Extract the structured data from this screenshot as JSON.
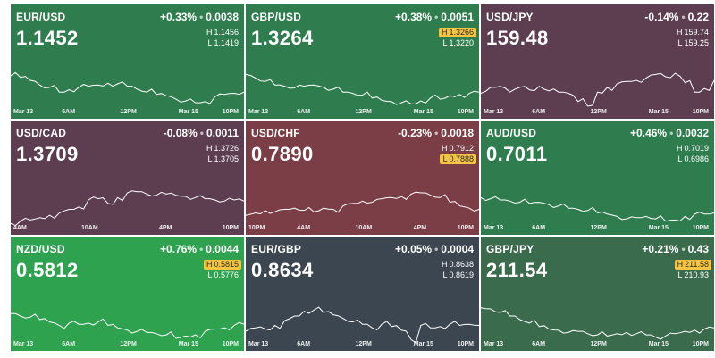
{
  "tiles": [
    {
      "pair": "EUR/USD",
      "change_pct": "+0.33%",
      "change_abs": "0.0038",
      "price": "1.1452",
      "high_label": "H",
      "high": "1.1456",
      "low_label": "L",
      "low": "1.1419",
      "flag": "",
      "bg": "#2f7d4e",
      "ticks": [
        "Mar 13",
        "6AM",
        "12PM",
        "Mar 15",
        "10PM"
      ],
      "spark": [
        0.42,
        0.45,
        0.5,
        0.58,
        0.62,
        0.7,
        0.66,
        0.62,
        0.6,
        0.58,
        0.55,
        0.56,
        0.6,
        0.65,
        0.7,
        0.74,
        0.76,
        0.82,
        0.85,
        0.88,
        0.86,
        0.78,
        0.74,
        0.72,
        0.7
      ]
    },
    {
      "pair": "GBP/USD",
      "change_pct": "+0.38%",
      "change_abs": "0.0051",
      "price": "1.3264",
      "high_label": "H",
      "high": "1.3266",
      "low_label": "L",
      "low": "1.3220",
      "flag": "high",
      "bg": "#2f7d4e",
      "ticks": [
        "Mar 13",
        "6AM",
        "12PM",
        "Mar 15",
        "10PM"
      ],
      "spark": [
        0.4,
        0.46,
        0.52,
        0.58,
        0.6,
        0.63,
        0.6,
        0.58,
        0.62,
        0.65,
        0.7,
        0.72,
        0.75,
        0.8,
        0.84,
        0.86,
        0.88,
        0.9,
        0.85,
        0.8,
        0.82,
        0.76,
        0.74,
        0.72,
        0.7
      ]
    },
    {
      "pair": "USD/JPY",
      "change_pct": "-0.14%",
      "change_abs": "0.22",
      "price": "159.48",
      "high_label": "H",
      "high": "159.74",
      "low_label": "L",
      "low": "159.25",
      "flag": "",
      "bg": "#5c3e50",
      "ticks": [
        "Mar 13",
        "6AM",
        "12PM",
        "Mar 15",
        "10PM"
      ],
      "spark": [
        0.72,
        0.62,
        0.6,
        0.7,
        0.62,
        0.66,
        0.6,
        0.68,
        0.7,
        0.72,
        0.86,
        0.94,
        0.7,
        0.62,
        0.56,
        0.52,
        0.5,
        0.46,
        0.4,
        0.44,
        0.38,
        0.54,
        0.7,
        0.64,
        0.5
      ]
    },
    {
      "pair": "USD/CAD",
      "change_pct": "-0.08%",
      "change_abs": "0.0011",
      "price": "1.3709",
      "high_label": "H",
      "high": "1.3726",
      "low_label": "L",
      "low": "1.3705",
      "flag": "",
      "bg": "#5c3e50",
      "ticks": [
        "4AM",
        "10AM",
        "4PM",
        "10PM"
      ],
      "spark": [
        0.96,
        0.92,
        0.9,
        0.86,
        0.82,
        0.78,
        0.72,
        0.68,
        0.56,
        0.54,
        0.62,
        0.52,
        0.44,
        0.42,
        0.46,
        0.48,
        0.46,
        0.48,
        0.5,
        0.52,
        0.54,
        0.56,
        0.58,
        0.56,
        0.58
      ]
    },
    {
      "pair": "USD/CHF",
      "change_pct": "-0.23%",
      "change_abs": "0.0018",
      "price": "0.7890",
      "high_label": "H",
      "high": "0.7912",
      "low_label": "L",
      "low": "0.7888",
      "flag": "low",
      "bg": "#7b3e47",
      "ticks": [
        "10PM",
        "4AM",
        "10AM",
        "4PM",
        "10PM"
      ],
      "spark": [
        0.82,
        0.78,
        0.74,
        0.76,
        0.72,
        0.7,
        0.74,
        0.76,
        0.7,
        0.72,
        0.66,
        0.62,
        0.58,
        0.6,
        0.54,
        0.52,
        0.5,
        0.46,
        0.44,
        0.48,
        0.52,
        0.6,
        0.66,
        0.7,
        0.72
      ]
    },
    {
      "pair": "AUD/USD",
      "change_pct": "+0.46%",
      "change_abs": "0.0032",
      "price": "0.7011",
      "high_label": "H",
      "high": "0.7019",
      "low_label": "L",
      "low": "0.6986",
      "flag": "",
      "bg": "#2f7d4e",
      "ticks": [
        "Mar 13",
        "6AM",
        "12PM",
        "Mar 15",
        "10PM"
      ],
      "spark": [
        0.52,
        0.54,
        0.56,
        0.58,
        0.6,
        0.62,
        0.6,
        0.64,
        0.66,
        0.7,
        0.72,
        0.74,
        0.78,
        0.8,
        0.84,
        0.88,
        0.86,
        0.84,
        0.88,
        0.92,
        0.9,
        0.84,
        0.8,
        0.8,
        0.78
      ]
    },
    {
      "pair": "NZD/USD",
      "change_pct": "+0.76%",
      "change_abs": "0.0044",
      "price": "0.5812",
      "high_label": "H",
      "high": "0.5815",
      "low_label": "L",
      "low": "0.5776",
      "flag": "high",
      "bg": "#2ea24f",
      "ticks": [
        "Mar 13",
        "6AM",
        "12PM",
        "Mar 15",
        "10PM"
      ],
      "spark": [
        0.52,
        0.56,
        0.58,
        0.62,
        0.66,
        0.72,
        0.68,
        0.7,
        0.68,
        0.66,
        0.72,
        0.76,
        0.8,
        0.82,
        0.84,
        0.86,
        0.88,
        0.94,
        0.9,
        0.88,
        0.82,
        0.78,
        0.76,
        0.72,
        0.7
      ]
    },
    {
      "pair": "EUR/GBP",
      "change_pct": "+0.05%",
      "change_abs": "0.0004",
      "price": "0.8634",
      "high_label": "H",
      "high": "0.8638",
      "low_label": "L",
      "low": "0.8619",
      "flag": "",
      "bg": "#3b4650",
      "ticks": [
        "Mar 13",
        "6AM",
        "12PM",
        "Mar 15",
        "10PM"
      ],
      "spark": [
        0.82,
        0.76,
        0.78,
        0.72,
        0.64,
        0.56,
        0.48,
        0.46,
        0.5,
        0.54,
        0.6,
        0.66,
        0.7,
        0.76,
        0.7,
        0.74,
        0.8,
        0.96,
        0.72,
        0.76,
        0.74,
        0.7,
        0.72,
        0.7,
        0.72
      ]
    },
    {
      "pair": "GBP/JPY",
      "change_pct": "+0.21%",
      "change_abs": "0.43",
      "price": "211.54",
      "high_label": "H",
      "high": "211.58",
      "low_label": "L",
      "low": "210.93",
      "flag": "high",
      "bg": "#3a6b4c",
      "ticks": [
        "Mar 13",
        "6AM",
        "12PM",
        "Mar 15",
        "10PM"
      ],
      "spark": [
        0.42,
        0.44,
        0.5,
        0.56,
        0.62,
        0.68,
        0.74,
        0.78,
        0.8,
        0.84,
        0.82,
        0.86,
        0.88,
        0.9,
        0.86,
        0.84,
        0.86,
        0.88,
        0.92,
        0.9,
        0.86,
        0.82,
        0.8,
        0.78,
        0.76
      ]
    }
  ]
}
